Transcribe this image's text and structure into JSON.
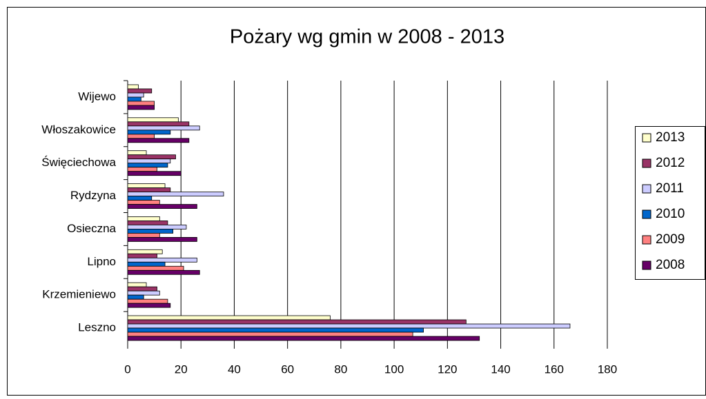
{
  "chart_data": {
    "type": "barh",
    "title": "Pożary wg gmin w 2008 - 2013",
    "categories": [
      "Leszno",
      "Krzemieniewo",
      "Lipno",
      "Osieczna",
      "Rydzyna",
      "Święciechowa",
      "Włoszakowice",
      "Wijewo"
    ],
    "series": [
      {
        "name": "2013",
        "color": "#ffffcc",
        "values": [
          76,
          7,
          13,
          12,
          14,
          7,
          19,
          4
        ]
      },
      {
        "name": "2012",
        "color": "#993366",
        "values": [
          127,
          11,
          11,
          15,
          16,
          18,
          23,
          9
        ]
      },
      {
        "name": "2011",
        "color": "#ccccff",
        "values": [
          166,
          12,
          26,
          22,
          36,
          16,
          27,
          6
        ]
      },
      {
        "name": "2010",
        "color": "#0066cc",
        "values": [
          111,
          6,
          14,
          17,
          9,
          15,
          16,
          5
        ]
      },
      {
        "name": "2009",
        "color": "#ff8080",
        "values": [
          107,
          15,
          21,
          12,
          12,
          11,
          10,
          10
        ]
      },
      {
        "name": "2008",
        "color": "#660066",
        "values": [
          132,
          16,
          27,
          26,
          26,
          20,
          23,
          10
        ]
      }
    ],
    "xlim": [
      0,
      180
    ],
    "xticks": [
      0,
      20,
      40,
      60,
      80,
      100,
      120,
      140,
      160,
      180
    ],
    "grid": true,
    "legend": "right"
  }
}
